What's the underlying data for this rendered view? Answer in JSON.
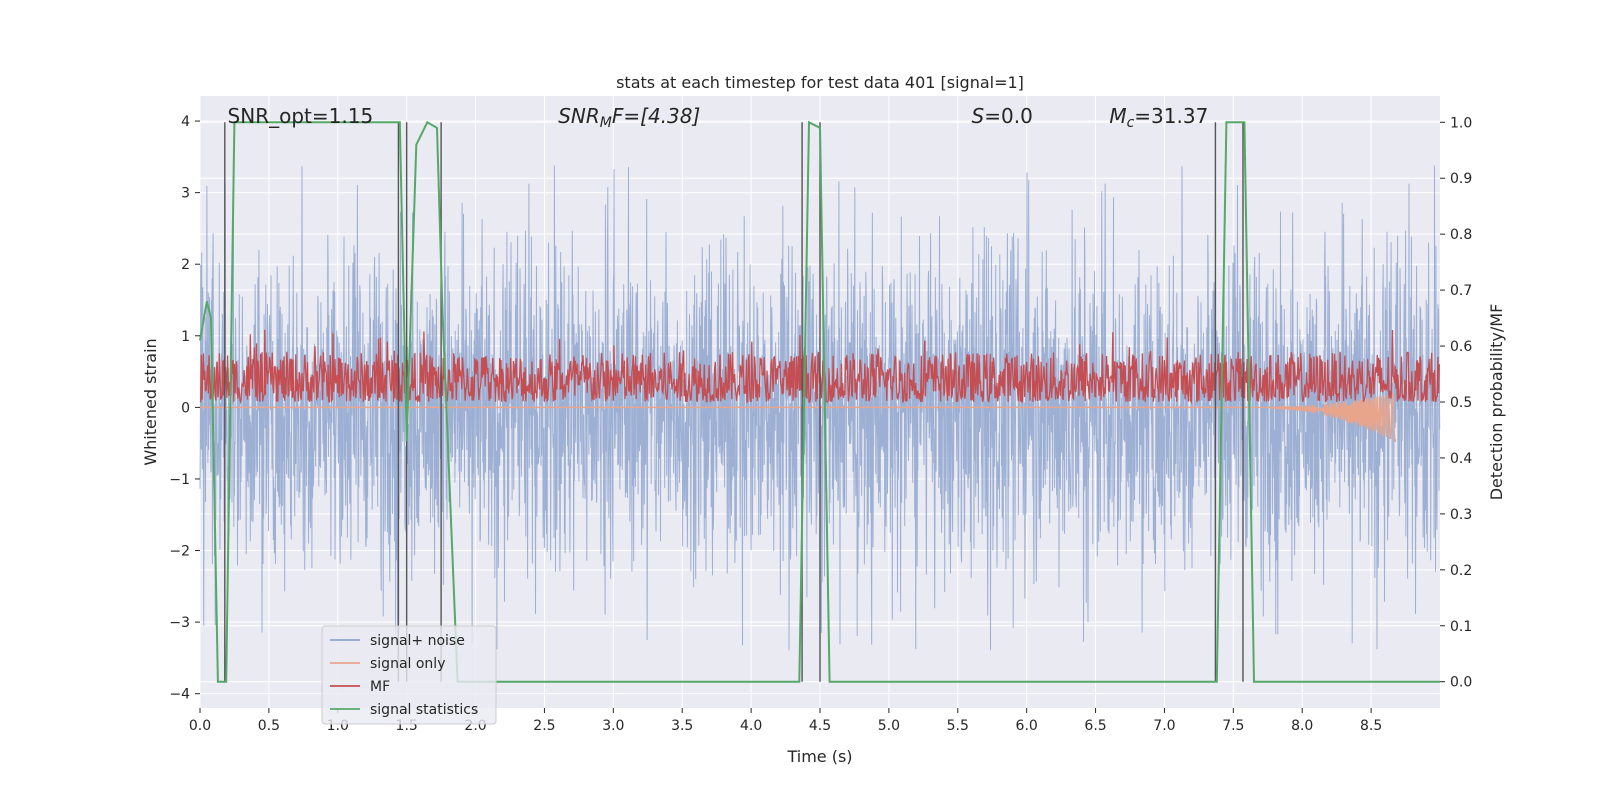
{
  "chart_data": {
    "type": "line",
    "title": "stats at each timestep for test data 401 [signal=1]",
    "xlabel": "Time (s)",
    "ylabel": "Whitened strain",
    "y2label": "Detection probability/MF",
    "xlim": [
      0.0,
      9.0
    ],
    "ylim": [
      -4.2,
      4.35
    ],
    "y2lim": [
      -0.047,
      1.047
    ],
    "x_ticks": [
      "0.0",
      "0.5",
      "1.0",
      "1.5",
      "2.0",
      "2.5",
      "3.0",
      "3.5",
      "4.0",
      "4.5",
      "5.0",
      "5.5",
      "6.0",
      "6.5",
      "7.0",
      "7.5",
      "8.0",
      "8.5"
    ],
    "y_ticks": [
      "−4",
      "−3",
      "−2",
      "−1",
      "0",
      "1",
      "2",
      "3",
      "4"
    ],
    "y2_ticks": [
      "0.0",
      "0.1",
      "0.2",
      "0.3",
      "0.4",
      "0.5",
      "0.6",
      "0.7",
      "0.8",
      "0.9",
      "1.0"
    ],
    "grid": true,
    "legend_position": "lower-left",
    "annotations": [
      {
        "text": "SNR_opt=1.15",
        "x": 0.2
      },
      {
        "text": "SNR",
        "sub": "M",
        "suffix": "F=[4.38]",
        "italic": true,
        "x": 2.6
      },
      {
        "text": "S",
        "suffix": "=0.0",
        "italic": true,
        "x": 5.6
      },
      {
        "text": "M",
        "sub": "c",
        "suffix": "=31.37",
        "italic": true,
        "x": 6.6
      }
    ],
    "series": [
      {
        "name": "signal+ noise",
        "color": "#8fa6cf",
        "axis": "left",
        "kind": "noise",
        "amplitude": 1.5,
        "spike_max": 3.4
      },
      {
        "name": "signal only",
        "color": "#e8a58c",
        "axis": "left",
        "kind": "chirp",
        "x_start": 7.6,
        "x_end": 8.68,
        "peak": 0.35
      },
      {
        "name": "MF",
        "color": "#c44e52",
        "axis": "right",
        "kind": "band",
        "low": 0.5,
        "high": 0.6,
        "range": [
          0.5,
          0.59
        ]
      },
      {
        "name": "signal statistics",
        "color": "#55a868",
        "axis": "right",
        "x": [
          0.0,
          0.05,
          0.08,
          0.13,
          0.19,
          0.25,
          1.45,
          1.5,
          1.57,
          1.65,
          1.72,
          1.76,
          1.87,
          4.35,
          4.42,
          4.5,
          4.57,
          7.38,
          7.45,
          7.58,
          7.65,
          9.0
        ],
        "y": [
          0.61,
          0.68,
          0.65,
          0.0,
          0.0,
          1.0,
          1.0,
          0.43,
          0.96,
          1.0,
          0.99,
          0.66,
          0.0,
          0.0,
          1.0,
          0.99,
          0.0,
          0.0,
          1.0,
          1.0,
          0.0,
          0.0
        ]
      }
    ],
    "vertical_markers": [
      0.18,
      1.44,
      1.5,
      1.75,
      4.37,
      4.5,
      7.37,
      7.57
    ]
  }
}
